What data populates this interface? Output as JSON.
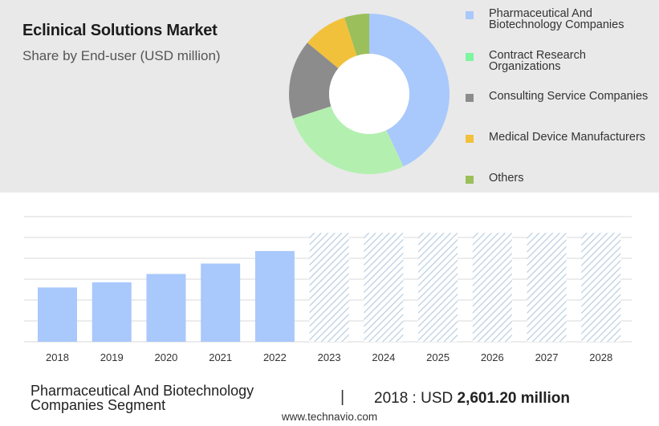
{
  "header": {
    "title": "Eclinical Solutions Market",
    "subtitle": "Share by End-user (USD million)"
  },
  "colors": {
    "top_panel_bg": "#e9e9e9",
    "bar_fill": "#a9c8fc",
    "hatch_stroke": "#b8cde0",
    "grid": "#d9d9d9"
  },
  "chart_data": [
    {
      "type": "pie",
      "subtype": "donut",
      "legend_position": "right",
      "series": [
        {
          "name": "Pharmaceutical And Biotechnology Companies",
          "value": 43,
          "color": "#a9c8fc"
        },
        {
          "name": "Contract Research Organizations",
          "value": 27,
          "color": "#b3f0b0"
        },
        {
          "name": "Consulting Service Companies",
          "value": 16,
          "color": "#8c8c8c"
        },
        {
          "name": "Medical Device Manufacturers",
          "value": 9,
          "color": "#f2c13b"
        },
        {
          "name": "Others",
          "value": 5,
          "color": "#9bbf5a"
        }
      ],
      "legend_colors": [
        "#a9c8fc",
        "#7ff5a0",
        "#8c8c8c",
        "#f2c13b",
        "#9bbf5a"
      ]
    },
    {
      "type": "bar",
      "categories": [
        "2018",
        "2019",
        "2020",
        "2021",
        "2022",
        "2023",
        "2024",
        "2025",
        "2026",
        "2027",
        "2028"
      ],
      "values": [
        2601.2,
        2850,
        3250,
        3750,
        4350,
        null,
        null,
        null,
        null,
        null,
        null
      ],
      "forecast_categories": [
        "2023",
        "2024",
        "2025",
        "2026",
        "2027",
        "2028"
      ],
      "forecast_style": "hatched",
      "ylim": [
        0,
        6000
      ],
      "grid": true
    }
  ],
  "footer": {
    "segment_line1": "Pharmaceutical And Biotechnology",
    "segment_line2": "Companies Segment",
    "separator": "|",
    "value_prefix": "2018 : USD",
    "value_bold": "2,601.20 million",
    "website": "www.technavio.com"
  }
}
